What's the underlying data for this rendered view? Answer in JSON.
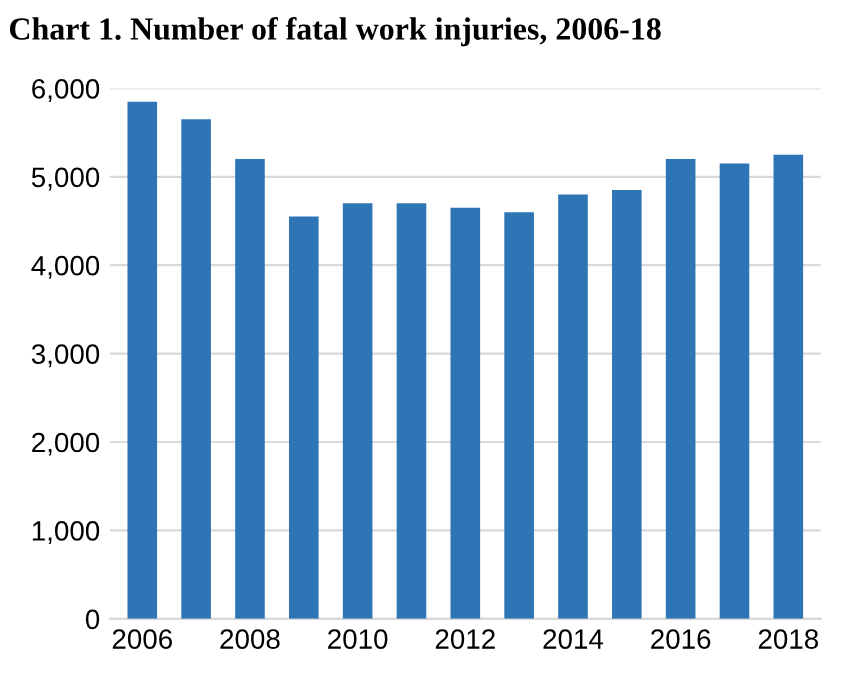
{
  "chart_data": {
    "type": "bar",
    "title": "Chart 1. Number of fatal work injuries, 2006-18",
    "categories": [
      "2006",
      null,
      "2008",
      null,
      "2010",
      null,
      "2012",
      null,
      "2014",
      null,
      "2016",
      null,
      "2018"
    ],
    "values": [
      5850,
      5650,
      5200,
      4550,
      4700,
      4700,
      4650,
      4600,
      4800,
      4850,
      5200,
      5150,
      5250
    ],
    "color": "#2e75b6",
    "ylim": [
      0,
      6000
    ],
    "yticks": [
      {
        "value": 0,
        "label": "0"
      },
      {
        "value": 1000,
        "label": "1,000"
      },
      {
        "value": 2000,
        "label": "2,000"
      },
      {
        "value": 3000,
        "label": "3,000"
      },
      {
        "value": 4000,
        "label": "4,000"
      },
      {
        "value": 5000,
        "label": "5,000"
      },
      {
        "value": 6000,
        "label": "6,000"
      }
    ],
    "grid": "y"
  }
}
